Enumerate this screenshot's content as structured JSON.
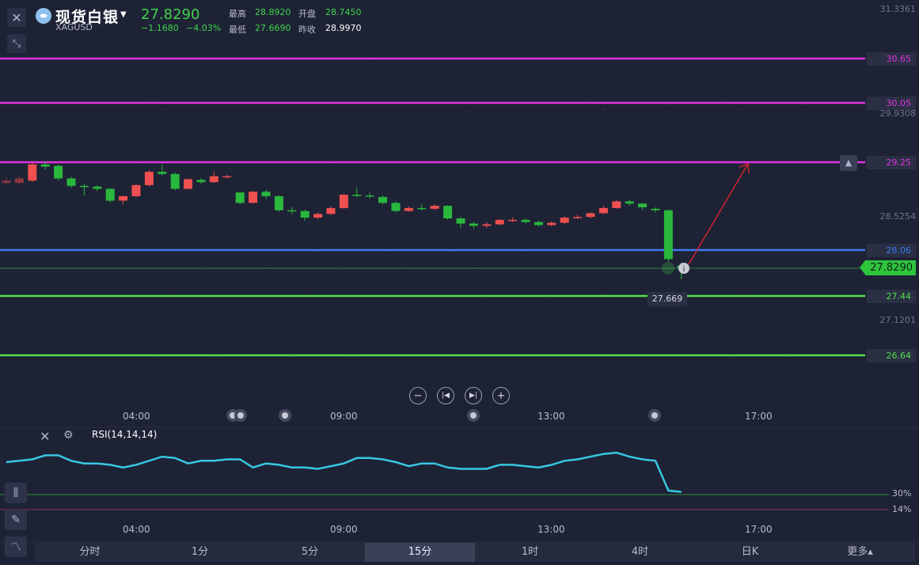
{
  "header": {
    "name": "现货白银",
    "code": "XAGUSD",
    "price": "27.8290",
    "change": "−1.1680",
    "change_pct": "−4.03%",
    "high_label": "最高",
    "high": "28.8920",
    "open_label": "开盘",
    "open": "28.7450",
    "low_label": "最低",
    "low": "27.6690",
    "prev_close_label": "昨收",
    "prev_close": "28.9970"
  },
  "axis": {
    "top_partial": "31.3361",
    "ticks": [
      "29.9308",
      "28.5254",
      "27.1201"
    ]
  },
  "levels": [
    {
      "label": "30.65",
      "color": "#e233e0"
    },
    {
      "label": "30.05",
      "color": "#e233e0"
    },
    {
      "label": "29.25",
      "color": "#e233e0"
    },
    {
      "label": "28.06",
      "color": "#3d7bf0"
    },
    {
      "label": "27.44",
      "color": "#52e04a"
    },
    {
      "label": "26.64",
      "color": "#52e04a"
    }
  ],
  "current_price_tag": "27.8290",
  "low_marker": "27.669",
  "colors": {
    "up": "#ef5050",
    "down": "#29b83d",
    "rsi": "#37c8e0",
    "background": "#1e2235"
  },
  "time_axis": [
    "04:00",
    "09:00",
    "13:00",
    "17:00"
  ],
  "nav_controls": [
    "zoom-out",
    "jump-to-start",
    "jump-to-end",
    "zoom-in"
  ],
  "indicator": {
    "title": "RSI(14,14,14)",
    "level_30": "30%",
    "level_14": "14%"
  },
  "tabs": [
    "分时",
    "1分",
    "5分",
    "15分",
    "1时",
    "4时",
    "日K",
    "更多▴"
  ],
  "active_tab": "15分"
}
